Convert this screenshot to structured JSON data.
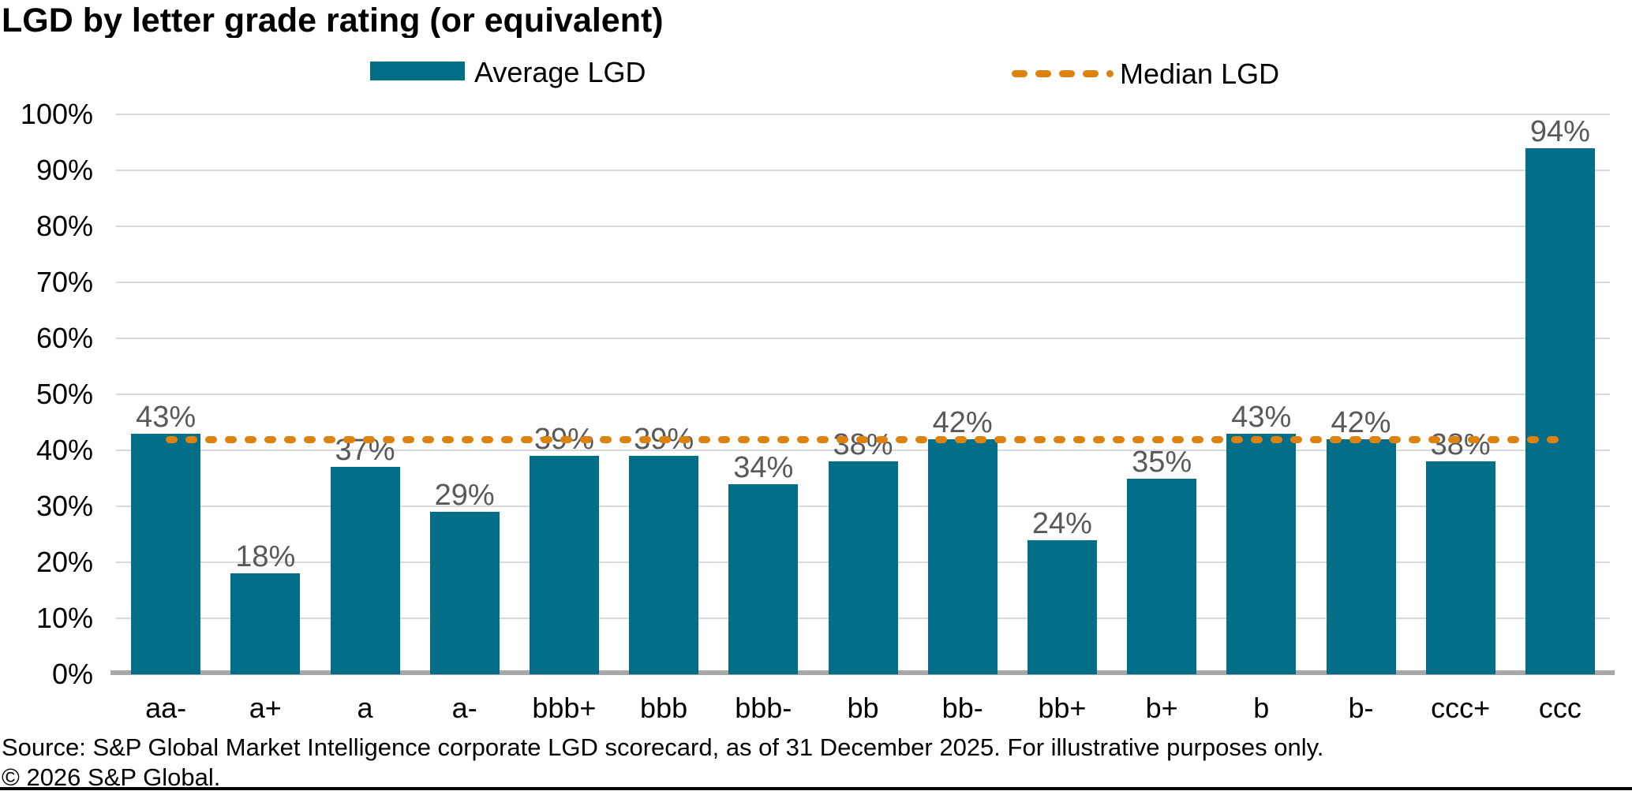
{
  "title": "LGD by letter grade rating (or equivalent)",
  "legend": {
    "average": {
      "label": "Average LGD",
      "color": "#036e88",
      "swatch": "bar-swatch"
    },
    "median": {
      "label": "Median LGD",
      "color": "#de820e",
      "swatch": "dashed-line-swatch"
    }
  },
  "chart_data": {
    "type": "bar",
    "title": "LGD by letter grade rating (or equivalent)",
    "categories": [
      "aa-",
      "a+",
      "a",
      "a-",
      "bbb+",
      "bbb",
      "bbb-",
      "bb",
      "bb-",
      "bb+",
      "b+",
      "b",
      "b-",
      "ccc+",
      "ccc"
    ],
    "series": [
      {
        "name": "Average LGD",
        "type": "bar",
        "color": "#036e88",
        "values": [
          43,
          18,
          37,
          29,
          39,
          39,
          34,
          38,
          42,
          24,
          35,
          43,
          42,
          38,
          94
        ],
        "value_labels": [
          "43%",
          "18%",
          "37%",
          "29%",
          "39%",
          "39%",
          "34%",
          "38%",
          "42%",
          "24%",
          "35%",
          "43%",
          "42%",
          "38%",
          "94%"
        ]
      },
      {
        "name": "Median LGD",
        "type": "line",
        "line_style": "dashed",
        "color": "#de820e",
        "value": 42
      }
    ],
    "xlabel": "",
    "ylabel": "",
    "ylim": [
      0,
      100
    ],
    "ytick_labels": [
      "100%",
      "90%",
      "80%",
      "70%",
      "60%",
      "50%",
      "40%",
      "30%",
      "20%",
      "10%",
      "0%"
    ],
    "grid": true,
    "legend_position": "top",
    "data_label_color": "#595959",
    "gridline_color": "#d9d9d9",
    "axis_line_color": "#a8a8a8"
  },
  "footer": {
    "source": "Source: S&P Global Market Intelligence corporate LGD scorecard, as of 31 December 2025. For illustrative purposes only.",
    "copyright": "© 2026 S&P Global."
  }
}
